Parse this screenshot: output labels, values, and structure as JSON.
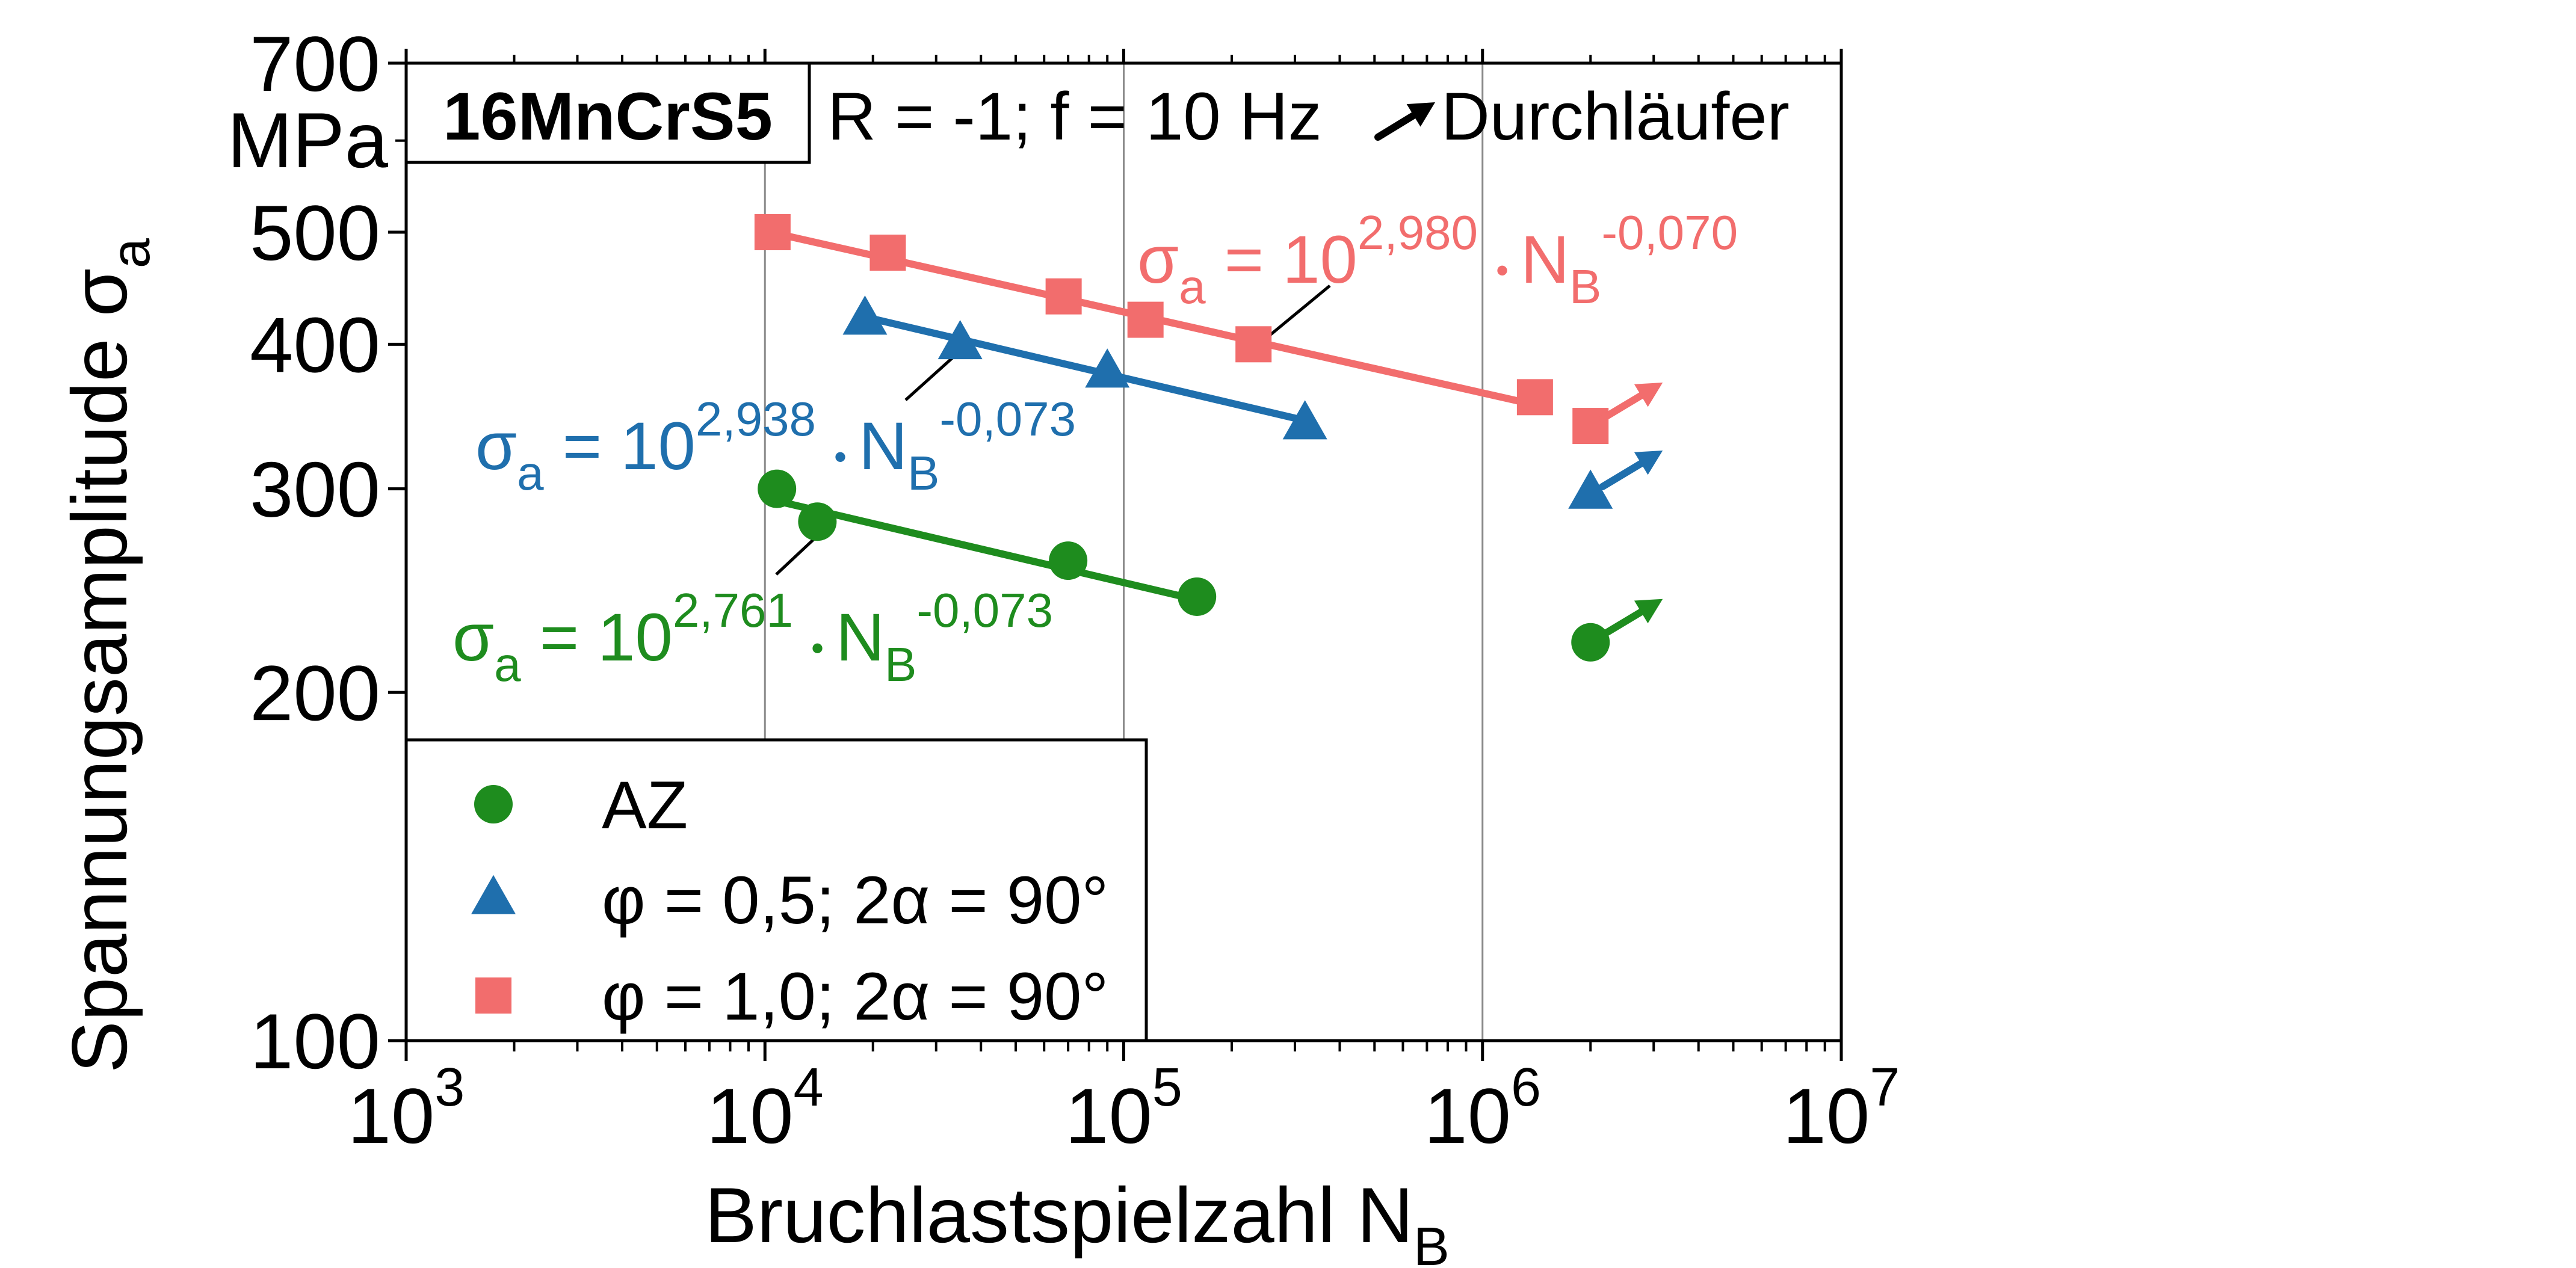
{
  "chart_data": {
    "type": "scatter",
    "x_scale": "log",
    "y_scale": "log",
    "xlim": [
      1000,
      10000000
    ],
    "ylim": [
      100,
      700
    ],
    "xlabel_main": "Bruchlastspielzahl N",
    "xlabel_sub": "B",
    "ylabel_main": "Spannungsamplitude σ",
    "ylabel_sub": "a",
    "ylabel_unit": "MPa",
    "x_ticks": [
      1000,
      10000,
      100000,
      1000000,
      10000000
    ],
    "x_tick_labels": [
      {
        "base": "10",
        "exp": "3"
      },
      {
        "base": "10",
        "exp": "4"
      },
      {
        "base": "10",
        "exp": "5"
      },
      {
        "base": "10",
        "exp": "6"
      },
      {
        "base": "10",
        "exp": "7"
      }
    ],
    "y_ticks": [
      100,
      200,
      300,
      400,
      500,
      700
    ],
    "y_tick_labels": [
      "100",
      "200",
      "300",
      "400",
      "500",
      "700"
    ],
    "y_minor_ticks": [
      600
    ],
    "x_gridlines": [
      10000,
      100000,
      1000000
    ],
    "material_label": "16MnCrS5",
    "condition_label": "R = -1; f = 10 Hz",
    "runout_label": "Durchläufer",
    "legend_position": "bottom-left",
    "series": [
      {
        "name": "AZ",
        "marker": "circle",
        "color": "#1e8c1e",
        "x": [
          10800,
          14000,
          70000,
          160000
        ],
        "y": [
          300,
          281,
          260,
          242
        ],
        "fit": {
          "x": [
            10800,
            160000
          ],
          "coef_exp": 2.761,
          "slope": -0.073
        },
        "runout": {
          "x": 2000000,
          "y": 221
        },
        "equation": {
          "prefix": "σ",
          "prefix_sub": "a",
          "mid": " = 10",
          "coef": "2,761",
          "dot": "•",
          "nb": "N",
          "nb_sub": "B",
          "exp": "-0,073"
        }
      },
      {
        "name": "φ = 0,5; 2α = 90°",
        "marker": "triangle",
        "color": "#1f6fad",
        "x": [
          19000,
          35000,
          90000,
          320000
        ],
        "y": [
          420,
          400,
          378,
          341
        ],
        "fit": {
          "x": [
            19000,
            320000
          ],
          "coef_exp": 2.938,
          "slope": -0.073
        },
        "runout": {
          "x": 2000000,
          "y": 297
        },
        "equation": {
          "prefix": "σ",
          "prefix_sub": "a",
          "mid": " = 10",
          "coef": "2,938",
          "dot": "•",
          "nb": "N",
          "nb_sub": "B",
          "exp": "-0,073"
        }
      },
      {
        "name": "φ = 1,0; 2α = 90°",
        "marker": "square",
        "color": "#f26d6d",
        "x": [
          10500,
          22000,
          68000,
          115000,
          230000,
          1400000
        ],
        "y": [
          500,
          480,
          440,
          420,
          400,
          360
        ],
        "fit": {
          "x": [
            10500,
            1400000
          ],
          "coef_exp": 2.98,
          "slope": -0.07
        },
        "runout": {
          "x": 2000000,
          "y": 340
        },
        "equation": {
          "prefix": "σ",
          "prefix_sub": "a",
          "mid": " = 10",
          "coef": "2,980",
          "dot": "•",
          "nb": "N",
          "nb_sub": "B",
          "exp": "-0,070"
        }
      }
    ]
  }
}
